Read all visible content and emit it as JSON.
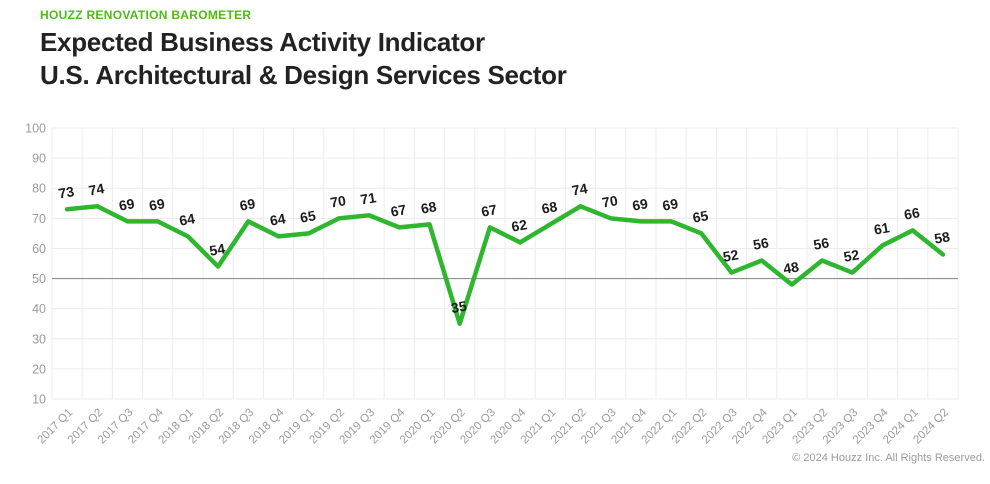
{
  "header": {
    "kicker": "HOUZZ RENOVATION BAROMETER",
    "title_line1": "Expected Business Activity Indicator",
    "title_line2": "U.S. Architectural & Design Services Sector"
  },
  "footer": {
    "copyright": "© 2024 Houzz Inc. All Rights Reserved."
  },
  "colors": {
    "brand_green": "#4dbc15",
    "line_green": "#2eb62e",
    "grid": "#ececec",
    "axis_text": "#9b9b9b",
    "ref_line": "#8f8f8f",
    "value_label": "#1c1c1c",
    "title_text": "#222222"
  },
  "chart_data": {
    "type": "line",
    "title": "Expected Business Activity Indicator",
    "subtitle": "U.S. Architectural & Design Services Sector",
    "categories": [
      "2017 Q1",
      "2017 Q2",
      "2017 Q3",
      "2017 Q4",
      "2018 Q1",
      "2018 Q2",
      "2018 Q3",
      "2018 Q4",
      "2019 Q1",
      "2019 Q2",
      "2019 Q3",
      "2019 Q4",
      "2020 Q1",
      "2020 Q2",
      "2020 Q3",
      "2020 Q4",
      "2021 Q1",
      "2021 Q2",
      "2021 Q3",
      "2021 Q4",
      "2022 Q1",
      "2022 Q2",
      "2022 Q3",
      "2022 Q4",
      "2023 Q1",
      "2023 Q2",
      "2023 Q3",
      "2023 Q4",
      "2024 Q1",
      "2024 Q2"
    ],
    "values": [
      73,
      74,
      69,
      69,
      64,
      54,
      69,
      64,
      65,
      70,
      71,
      67,
      68,
      35,
      67,
      62,
      68,
      74,
      70,
      69,
      69,
      65,
      52,
      56,
      48,
      56,
      52,
      61,
      66,
      58
    ],
    "xlabel": "",
    "ylabel": "",
    "ylim": [
      10,
      100
    ],
    "yticks": [
      10,
      20,
      30,
      40,
      50,
      60,
      70,
      80,
      90,
      100
    ],
    "reference_line": 50,
    "grid": true,
    "legend": false,
    "line_color": "#2eb62e",
    "show_value_labels": true
  }
}
